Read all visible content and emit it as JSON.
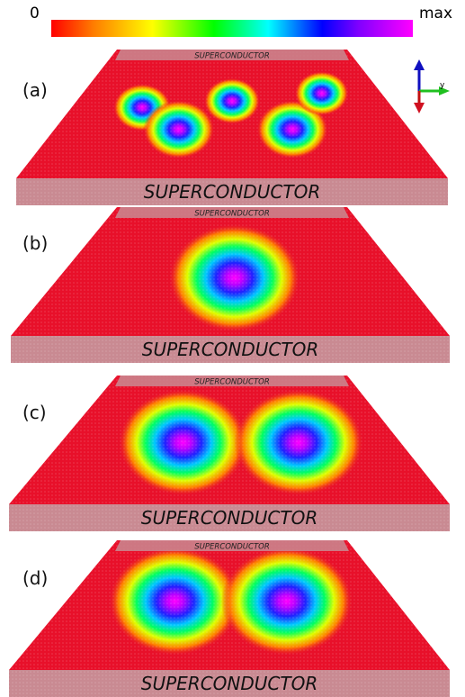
{
  "colorbar": {
    "min_label": "0",
    "max_label": "max"
  },
  "axes_widget": {
    "y_label": "y"
  },
  "panels": [
    {
      "label": "(a)",
      "top_electrode": "SUPERCONDUCTOR",
      "bottom_electrode": "SUPERCONDUCTOR",
      "blobs": [
        {
          "u": 0.22,
          "v": 0.45,
          "r": 0.09
        },
        {
          "u": 0.35,
          "v": 0.62,
          "r": 0.1
        },
        {
          "u": 0.5,
          "v": 0.4,
          "r": 0.09
        },
        {
          "u": 0.67,
          "v": 0.62,
          "r": 0.1
        },
        {
          "u": 0.8,
          "v": 0.34,
          "r": 0.09
        }
      ]
    },
    {
      "label": "(b)",
      "top_electrode": "SUPERCONDUCTOR",
      "bottom_electrode": "SUPERCONDUCTOR",
      "blobs": [
        {
          "u": 0.51,
          "v": 0.55,
          "r": 0.19
        }
      ]
    },
    {
      "label": "(c)",
      "top_electrode": "SUPERCONDUCTOR",
      "bottom_electrode": "SUPERCONDUCTOR",
      "blobs": [
        {
          "u": 0.36,
          "v": 0.52,
          "r": 0.19
        },
        {
          "u": 0.7,
          "v": 0.52,
          "r": 0.19
        }
      ]
    },
    {
      "label": "(d)",
      "top_electrode": "SUPERCONDUCTOR",
      "bottom_electrode": "SUPERCONDUCTOR",
      "blobs": [
        {
          "u": 0.33,
          "v": 0.47,
          "r": 0.2
        },
        {
          "u": 0.67,
          "v": 0.47,
          "r": 0.2
        }
      ]
    }
  ],
  "colors": {
    "field_base": "#e8102a",
    "electrode": "#c98a92"
  }
}
